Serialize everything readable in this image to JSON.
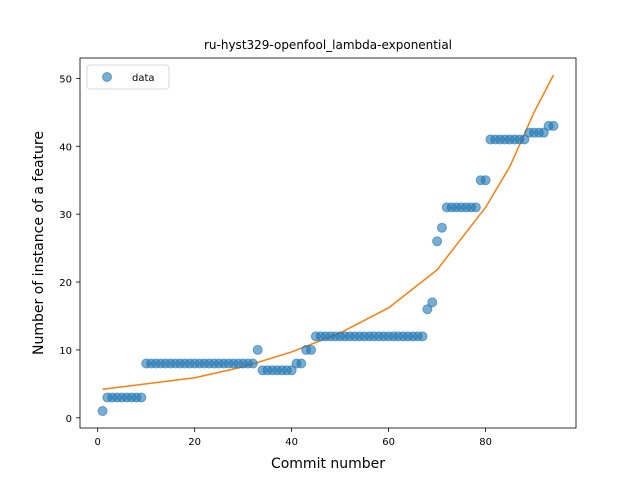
{
  "chart_data": {
    "type": "scatter",
    "title": "ru-hyst329-openfool_lambda-exponential",
    "xlabel": "Commit number",
    "ylabel": "Number of instance of a feature",
    "xlim": [
      -3.65,
      98.65
    ],
    "ylim": [
      -1.5,
      53.0
    ],
    "xticks": [
      0,
      20,
      40,
      60,
      80
    ],
    "yticks": [
      0,
      10,
      20,
      30,
      40,
      50
    ],
    "legend": {
      "placement": "top-left",
      "entries": [
        "data"
      ]
    },
    "colors": {
      "data": "#1f77b4",
      "fit": "#ff7f0e"
    },
    "series": [
      {
        "name": "data",
        "kind": "scatter",
        "x": [
          1,
          2,
          3,
          4,
          5,
          6,
          7,
          8,
          9,
          10,
          11,
          12,
          13,
          14,
          15,
          16,
          17,
          18,
          19,
          20,
          21,
          22,
          23,
          24,
          25,
          26,
          27,
          28,
          29,
          30,
          31,
          32,
          33,
          34,
          35,
          36,
          37,
          38,
          39,
          40,
          41,
          42,
          43,
          44,
          45,
          46,
          47,
          48,
          49,
          50,
          51,
          52,
          53,
          54,
          55,
          56,
          57,
          58,
          59,
          60,
          61,
          62,
          63,
          64,
          65,
          66,
          67,
          68,
          69,
          70,
          71,
          72,
          73,
          74,
          75,
          76,
          77,
          78,
          79,
          80,
          81,
          82,
          83,
          84,
          85,
          86,
          87,
          88,
          89,
          90,
          91,
          92,
          93,
          94
        ],
        "y": [
          1,
          3,
          3,
          3,
          3,
          3,
          3,
          3,
          3,
          8,
          8,
          8,
          8,
          8,
          8,
          8,
          8,
          8,
          8,
          8,
          8,
          8,
          8,
          8,
          8,
          8,
          8,
          8,
          8,
          8,
          8,
          8,
          10,
          7,
          7,
          7,
          7,
          7,
          7,
          7,
          8,
          8,
          10,
          10,
          12,
          12,
          12,
          12,
          12,
          12,
          12,
          12,
          12,
          12,
          12,
          12,
          12,
          12,
          12,
          12,
          12,
          12,
          12,
          12,
          12,
          12,
          12,
          16,
          17,
          26,
          28,
          31,
          31,
          31,
          31,
          31,
          31,
          31,
          35,
          35,
          41,
          41,
          41,
          41,
          41,
          41,
          41,
          41,
          42,
          42,
          42,
          42,
          43,
          43
        ]
      },
      {
        "name": "",
        "kind": "line",
        "x": [
          1,
          20,
          30,
          40,
          50,
          60,
          70,
          80,
          85,
          90,
          94
        ],
        "y": [
          4.2,
          5.9,
          7.5,
          9.7,
          12.5,
          16.2,
          21.8,
          31.0,
          37.0,
          45.0,
          50.5
        ]
      }
    ]
  }
}
